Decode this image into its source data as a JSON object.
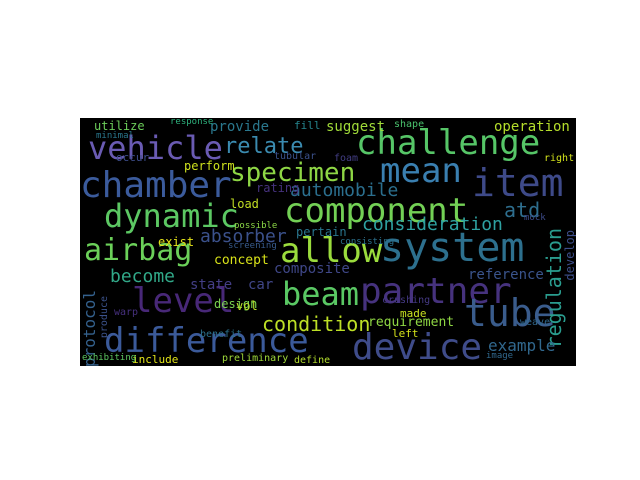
{
  "wordcloud": {
    "words": [
      {
        "text": "vehicle",
        "color": "#6a5bb3"
      },
      {
        "text": "relate",
        "color": "#3b8bb0"
      },
      {
        "text": "challenge",
        "color": "#56c567"
      },
      {
        "text": "mean",
        "color": "#3a7fb0"
      },
      {
        "text": "item",
        "color": "#3e4a89"
      },
      {
        "text": "chamber",
        "color": "#3b5b9c"
      },
      {
        "text": "specimen",
        "color": "#8ed645"
      },
      {
        "text": "automobile",
        "color": "#2b6f8e"
      },
      {
        "text": "dynamic",
        "color": "#5cc863"
      },
      {
        "text": "component",
        "color": "#73d055"
      },
      {
        "text": "atd",
        "color": "#2e6e8e"
      },
      {
        "text": "airbag",
        "color": "#6bd059"
      },
      {
        "text": "allow",
        "color": "#9bdc3d"
      },
      {
        "text": "system",
        "color": "#2d708e"
      },
      {
        "text": "consideration",
        "color": "#2ea1a1"
      },
      {
        "text": "absorber",
        "color": "#3b518b"
      },
      {
        "text": "become",
        "color": "#31a888"
      },
      {
        "text": "level",
        "color": "#482878"
      },
      {
        "text": "beam",
        "color": "#5ac864"
      },
      {
        "text": "partner",
        "color": "#46327e"
      },
      {
        "text": "tube",
        "color": "#3a5c8c"
      },
      {
        "text": "regulation",
        "color": "#2a9d8f"
      },
      {
        "text": "condition",
        "color": "#bddf26"
      },
      {
        "text": "requirement",
        "color": "#8fd744"
      },
      {
        "text": "difference",
        "color": "#3b5a9a"
      },
      {
        "text": "device",
        "color": "#3f4c8a"
      },
      {
        "text": "example",
        "color": "#31688e"
      },
      {
        "text": "protocol",
        "color": "#34618d"
      },
      {
        "text": "provide",
        "color": "#2a788e"
      },
      {
        "text": "suggest",
        "color": "#a0da39"
      },
      {
        "text": "operation",
        "color": "#b5de2b"
      },
      {
        "text": "perform",
        "color": "#cde11d"
      },
      {
        "text": "rating",
        "color": "#46327e"
      },
      {
        "text": "reference",
        "color": "#3a548c"
      },
      {
        "text": "develop",
        "color": "#3d4e8a"
      },
      {
        "text": "concept",
        "color": "#d8e219"
      },
      {
        "text": "design",
        "color": "#7ad151"
      },
      {
        "text": "composite",
        "color": "#3f4788"
      },
      {
        "text": "pertain",
        "color": "#2a768e"
      },
      {
        "text": "exist",
        "color": "#e5e419"
      },
      {
        "text": "state",
        "color": "#433e85"
      },
      {
        "text": "car",
        "color": "#404688"
      },
      {
        "text": "load",
        "color": "#c2df23"
      },
      {
        "text": "vol",
        "color": "#b8de29"
      },
      {
        "text": "utilize",
        "color": "#6ccd5a"
      },
      {
        "text": "include",
        "color": "#e0e318"
      },
      {
        "text": "preliminary",
        "color": "#9fda3a"
      },
      {
        "text": "define",
        "color": "#b2dd2d"
      },
      {
        "text": "left",
        "color": "#d5e21a"
      },
      {
        "text": "made",
        "color": "#c8e020"
      },
      {
        "text": "crushing",
        "color": "#443983"
      },
      {
        "text": "weave",
        "color": "#31688e"
      },
      {
        "text": "warp",
        "color": "#46307e"
      },
      {
        "text": "produce",
        "color": "#3b528b"
      },
      {
        "text": "occur",
        "color": "#3d4d8a"
      },
      {
        "text": "benefit",
        "color": "#2c718e"
      },
      {
        "text": "exhibiting",
        "color": "#5ec962"
      },
      {
        "text": "possible",
        "color": "#8bd646"
      },
      {
        "text": "screening",
        "color": "#375a8c"
      },
      {
        "text": "consisting",
        "color": "#2c728e"
      },
      {
        "text": "shape",
        "color": "#4ac16d"
      },
      {
        "text": "tubular",
        "color": "#3b518b"
      },
      {
        "text": "foam",
        "color": "#433e85"
      },
      {
        "text": "right",
        "color": "#d2e21b"
      },
      {
        "text": "image",
        "color": "#31688e"
      },
      {
        "text": "fill",
        "color": "#25858e"
      },
      {
        "text": "mock",
        "color": "#3e4c8a"
      },
      {
        "text": "minimal",
        "color": "#2a788e"
      },
      {
        "text": "response",
        "color": "#2db27d"
      }
    ]
  }
}
